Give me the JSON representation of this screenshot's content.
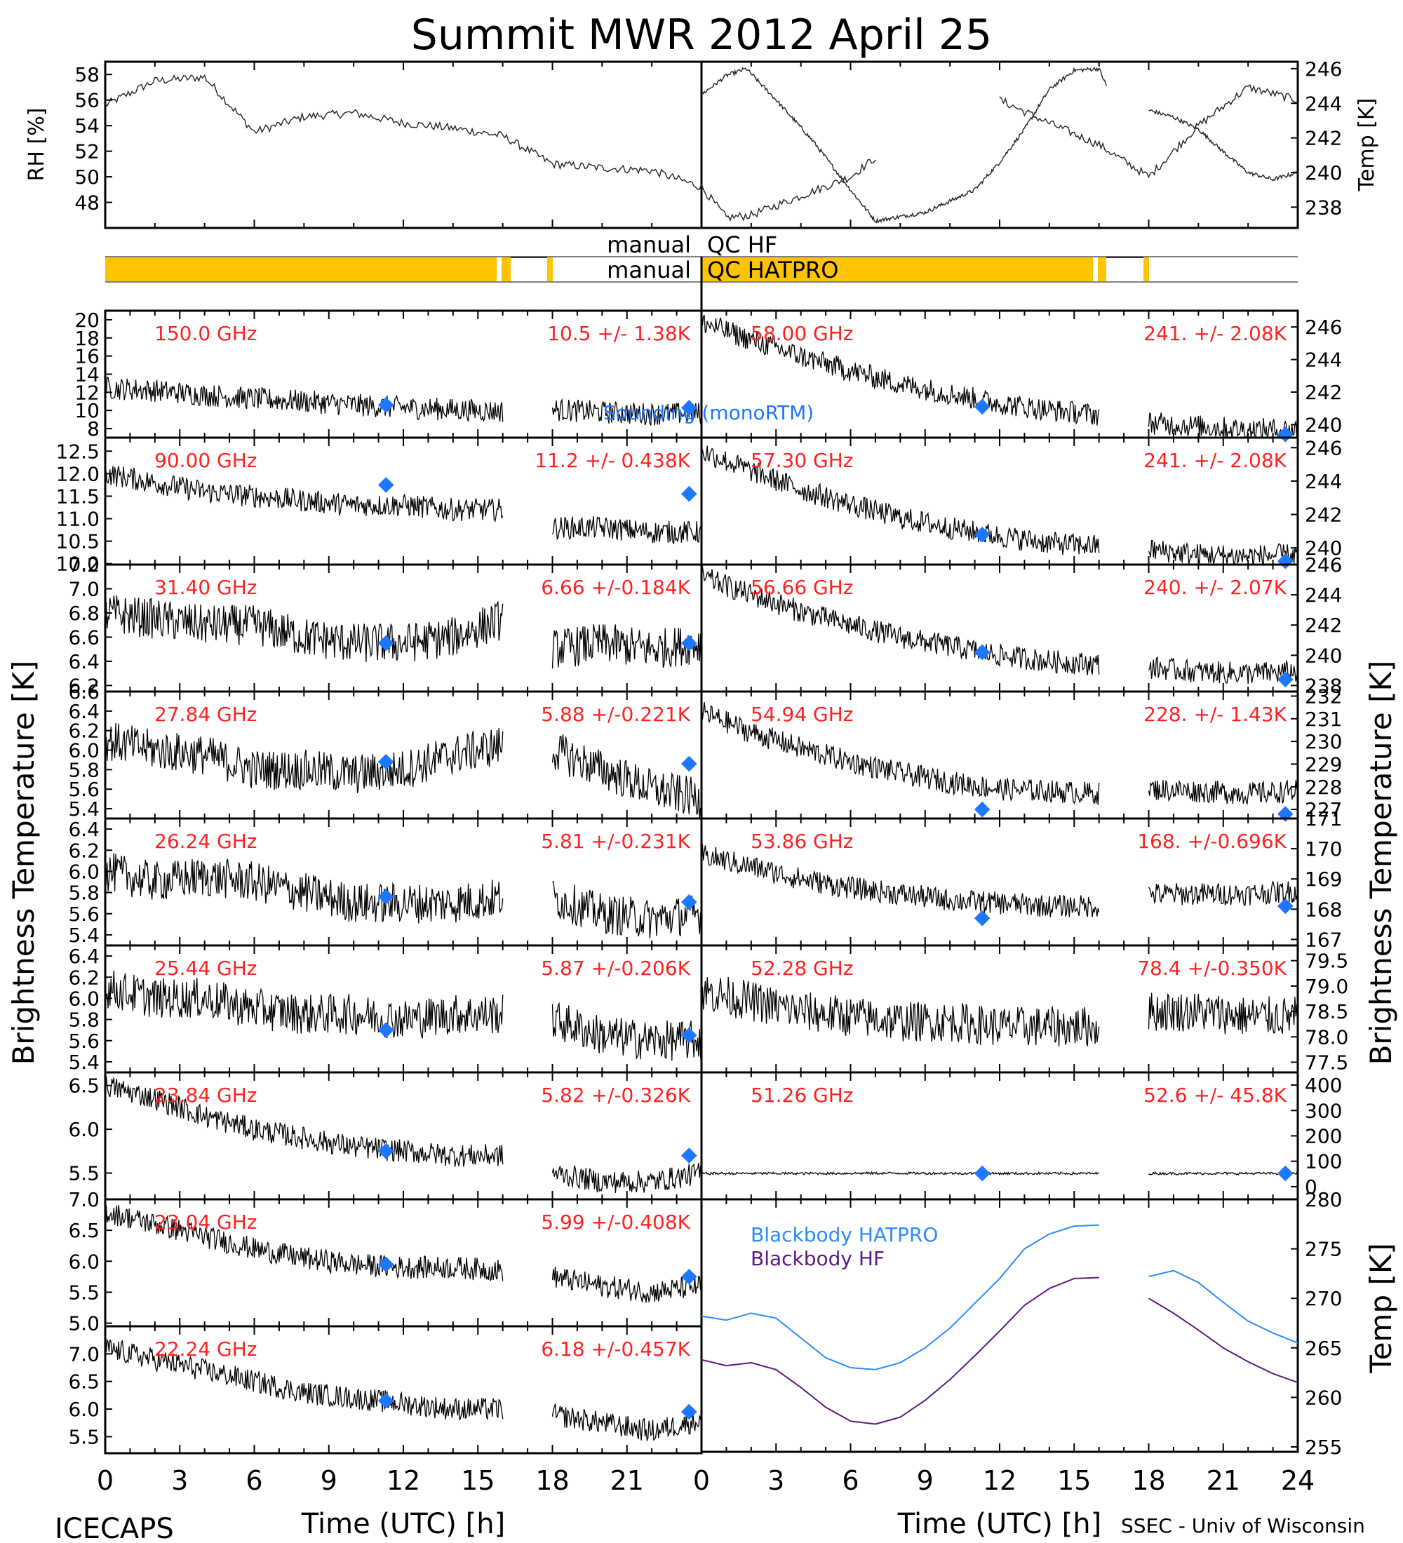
{
  "figure": {
    "title": "Summit MWR 2012 April 25",
    "footer_left": "ICECAPS",
    "footer_right": "SSEC - Univ of Wisconsin",
    "xlabel": "Time (UTC) [h]",
    "ylabel_left": "Brightness Temperature [K]",
    "ylabel_right": "Brightness Temperature [K]",
    "qc_hf_label_left": "manual",
    "qc_hf_label_right": "QC HF",
    "qc_hatpro_label_left": "manual",
    "qc_hatpro_label_right": "QC HATPRO",
    "sounding_label": "Sounding (monoRTM)",
    "colors": {
      "trace": "#000000",
      "stat_text": "#ff2020",
      "sounding": "#1e78ff",
      "qc_bar": "#ffc400",
      "bb_hatpro": "#2a8cff",
      "bb_hf": "#5a1a80"
    }
  },
  "chart_data": [
    {
      "type": "line",
      "id": "met-rh",
      "ylabel": "RH [%]",
      "xlim": [
        0,
        12
      ],
      "ylim": [
        46,
        59
      ],
      "yticks": [
        "48",
        "50",
        "52",
        "54",
        "56",
        "58"
      ],
      "series": [
        {
          "x": [
            0,
            1,
            2,
            3,
            4,
            5,
            6,
            7,
            8,
            9,
            10,
            11,
            12
          ],
          "y": [
            55.6,
            57.5,
            57.8,
            53.5,
            54.7,
            55.0,
            54.2,
            53.8,
            53.2,
            51.0,
            50.7,
            50.5,
            49.2
          ]
        }
      ]
    },
    {
      "type": "line",
      "id": "met-rh-cont",
      "ylabel": "",
      "xlim": [
        12,
        24
      ],
      "ylim": [
        46,
        59
      ],
      "series": [
        {
          "x": [
            12,
            12.5,
            13,
            14,
            15,
            15.5,
            18,
            19,
            20,
            21,
            22,
            23,
            24
          ],
          "y": [
            48.0,
            46.8,
            47.0,
            48.5,
            50.0,
            51.5,
            56.0,
            54.2,
            52.5,
            50.0,
            54.0,
            57.0,
            56.0
          ]
        }
      ]
    },
    {
      "type": "line",
      "id": "met-temp",
      "ylabel": "Temp [K]",
      "xlim": [
        0,
        24
      ],
      "ylim": [
        236.8,
        246.4
      ],
      "yticks": [
        "238",
        "240",
        "242",
        "244",
        "246"
      ],
      "series": [
        {
          "x": [
            0,
            1,
            1.8,
            3,
            4.5,
            6,
            7,
            9,
            11,
            12,
            13,
            14,
            15,
            16,
            16.3,
            18,
            19,
            20,
            21,
            22,
            23,
            24
          ],
          "y": [
            244.5,
            245.6,
            246.0,
            244.2,
            241.8,
            239.0,
            237.2,
            237.7,
            239.0,
            240.6,
            242.5,
            244.8,
            245.9,
            246.0,
            245.0,
            243.6,
            243.2,
            242.5,
            241.2,
            240.0,
            239.6,
            240.0
          ]
        }
      ]
    },
    {
      "type": "line",
      "id": "tb-150",
      "label": "150.0 GHz",
      "stat": "10.5 +/- 1.38K",
      "ylim": [
        7,
        21
      ],
      "yticks": [
        "8",
        "10",
        "12",
        "14",
        "16",
        "18",
        "20"
      ],
      "x": [
        0,
        2,
        4,
        6,
        8,
        10,
        12,
        14,
        16
      ],
      "y": [
        12.5,
        12.2,
        11.7,
        11.3,
        11.0,
        10.6,
        10.3,
        10.1,
        9.9
      ],
      "x2": [
        18,
        20,
        22,
        24
      ],
      "y2": [
        10.1,
        9.8,
        9.6,
        9.7
      ],
      "sounding": [
        [
          11.3,
          10.6
        ],
        [
          23.5,
          10.3
        ]
      ]
    },
    {
      "type": "line",
      "id": "tb-90",
      "label": "90.00 GHz",
      "stat": "11.2 +/- 0.438K",
      "ylim": [
        9.98,
        12.8
      ],
      "yticks": [
        "10.0",
        "10.5",
        "11.0",
        "11.5",
        "12.0",
        "12.5"
      ],
      "x": [
        0,
        2,
        4,
        6,
        8,
        10,
        12,
        14,
        16
      ],
      "y": [
        12.0,
        11.8,
        11.6,
        11.5,
        11.4,
        11.3,
        11.3,
        11.2,
        11.2
      ],
      "x2": [
        18,
        20,
        22,
        24
      ],
      "y2": [
        10.8,
        10.8,
        10.7,
        10.7
      ],
      "sounding": [
        [
          11.3,
          11.75
        ],
        [
          23.5,
          11.55
        ]
      ]
    },
    {
      "type": "line",
      "id": "tb-31",
      "label": "31.40 GHz",
      "stat": "6.66 +/-0.184K",
      "ylim": [
        6.15,
        7.2
      ],
      "yticks": [
        "6.2",
        "6.4",
        "6.6",
        "6.8",
        "7.0",
        "7.2"
      ],
      "x": [
        0,
        2,
        4,
        6,
        8,
        10,
        12,
        14,
        16
      ],
      "y": [
        6.8,
        6.75,
        6.7,
        6.7,
        6.6,
        6.55,
        6.55,
        6.6,
        6.75
      ],
      "x2": [
        18,
        20,
        22,
        24
      ],
      "y2": [
        6.5,
        6.55,
        6.5,
        6.55
      ],
      "sounding": [
        [
          11.3,
          6.55
        ],
        [
          23.5,
          6.55
        ]
      ]
    },
    {
      "type": "line",
      "id": "tb-27",
      "label": "27.84 GHz",
      "stat": "5.88 +/-0.221K",
      "ylim": [
        5.3,
        6.6
      ],
      "yticks": [
        "5.4",
        "5.6",
        "5.8",
        "6.0",
        "6.2",
        "6.4",
        "6.6"
      ],
      "x": [
        0,
        2,
        4,
        6,
        8,
        10,
        12,
        14,
        16
      ],
      "y": [
        6.1,
        6.0,
        5.95,
        5.8,
        5.8,
        5.75,
        5.8,
        5.95,
        6.05
      ],
      "x2": [
        18,
        20,
        22,
        24
      ],
      "y2": [
        6.0,
        5.8,
        5.6,
        5.5
      ],
      "sounding": [
        [
          11.3,
          5.88
        ],
        [
          23.5,
          5.86
        ]
      ]
    },
    {
      "type": "line",
      "id": "tb-26",
      "label": "26.24 GHz",
      "stat": "5.81 +/-0.231K",
      "ylim": [
        5.3,
        6.5
      ],
      "yticks": [
        "5.4",
        "5.6",
        "5.8",
        "6.0",
        "6.2",
        "6.4"
      ],
      "x": [
        0,
        2,
        4,
        6,
        8,
        10,
        12,
        14,
        16
      ],
      "y": [
        6.0,
        5.9,
        5.95,
        5.9,
        5.8,
        5.7,
        5.7,
        5.7,
        5.75
      ],
      "x2": [
        18,
        20,
        22,
        24
      ],
      "y2": [
        5.75,
        5.6,
        5.55,
        5.6
      ],
      "sounding": [
        [
          11.3,
          5.76
        ],
        [
          23.5,
          5.71
        ]
      ]
    },
    {
      "type": "line",
      "id": "tb-25",
      "label": "25.44 GHz",
      "stat": "5.87 +/-0.206K",
      "ylim": [
        5.3,
        6.5
      ],
      "yticks": [
        "5.4",
        "5.6",
        "5.8",
        "6.0",
        "6.2",
        "6.4"
      ],
      "x": [
        0,
        2,
        4,
        6,
        8,
        10,
        12,
        14,
        16
      ],
      "y": [
        6.1,
        6.0,
        6.0,
        5.9,
        5.85,
        5.85,
        5.8,
        5.85,
        5.85
      ],
      "x2": [
        18,
        20,
        22,
        24
      ],
      "y2": [
        5.8,
        5.65,
        5.6,
        5.6
      ],
      "sounding": [
        [
          11.3,
          5.7
        ],
        [
          23.5,
          5.65
        ]
      ]
    },
    {
      "type": "line",
      "id": "tb-23-84",
      "label": "23.84 GHz",
      "stat": "5.82 +/-0.326K",
      "ylim": [
        5.2,
        6.65
      ],
      "yticks": [
        "5.5",
        "6.0",
        "6.5"
      ],
      "x": [
        0,
        2,
        4,
        6,
        8,
        10,
        12,
        14,
        16
      ],
      "y": [
        6.5,
        6.35,
        6.15,
        6.0,
        5.9,
        5.8,
        5.75,
        5.7,
        5.7
      ],
      "x2": [
        18,
        20,
        22,
        24
      ],
      "y2": [
        5.5,
        5.4,
        5.4,
        5.5
      ],
      "sounding": [
        [
          11.3,
          5.75
        ],
        [
          23.5,
          5.7
        ]
      ]
    },
    {
      "type": "line",
      "id": "tb-23-04",
      "label": "23.04 GHz",
      "stat": "5.99 +/-0.408K",
      "ylim": [
        4.95,
        7.0
      ],
      "yticks": [
        "5.0",
        "5.5",
        "6.0",
        "6.5",
        "7.0"
      ],
      "x": [
        0,
        2,
        4,
        6,
        8,
        10,
        12,
        14,
        16
      ],
      "y": [
        6.8,
        6.6,
        6.4,
        6.2,
        6.05,
        5.95,
        5.9,
        5.9,
        5.85
      ],
      "x2": [
        18,
        20,
        22,
        24
      ],
      "y2": [
        5.75,
        5.6,
        5.5,
        5.6
      ],
      "sounding": [
        [
          11.3,
          5.95
        ],
        [
          23.5,
          5.75
        ]
      ]
    },
    {
      "type": "line",
      "id": "tb-22",
      "label": "22.24 GHz",
      "stat": "6.18 +/-0.457K",
      "ylim": [
        5.2,
        7.5
      ],
      "yticks": [
        "5.5",
        "6.0",
        "6.5",
        "7.0"
      ],
      "x": [
        0,
        2,
        4,
        6,
        8,
        10,
        12,
        14,
        16
      ],
      "y": [
        7.1,
        6.9,
        6.7,
        6.5,
        6.3,
        6.2,
        6.1,
        6.0,
        6.0
      ],
      "x2": [
        18,
        20,
        22,
        24
      ],
      "y2": [
        5.9,
        5.75,
        5.6,
        5.8
      ],
      "sounding": [
        [
          11.3,
          6.15
        ],
        [
          23.5,
          5.95
        ]
      ]
    },
    {
      "type": "line",
      "id": "tb-58",
      "label": "58.00 GHz",
      "stat": "241. +/- 2.08K",
      "ylim": [
        239.2,
        247.0
      ],
      "yticks": [
        "240",
        "242",
        "244",
        "246"
      ],
      "x": [
        0,
        2,
        4,
        6,
        8,
        10,
        12,
        14,
        16
      ],
      "y": [
        246.3,
        245.2,
        244.2,
        243.3,
        242.5,
        241.9,
        241.3,
        240.9,
        240.6
      ],
      "x2": [
        18,
        20,
        22,
        24
      ],
      "y2": [
        240.1,
        239.9,
        239.7,
        239.7
      ],
      "sounding": [
        [
          11.3,
          241.1
        ],
        [
          23.5,
          239.4
        ]
      ]
    },
    {
      "type": "line",
      "id": "tb-57",
      "label": "57.30 GHz",
      "stat": "241. +/- 2.08K",
      "ylim": [
        239.0,
        246.6
      ],
      "yticks": [
        "240",
        "242",
        "244",
        "246"
      ],
      "x": [
        0,
        2,
        4,
        6,
        8,
        10,
        12,
        14,
        16
      ],
      "y": [
        245.8,
        244.6,
        243.5,
        242.6,
        241.8,
        241.2,
        240.7,
        240.3,
        240.1
      ],
      "x2": [
        18,
        20,
        22,
        24
      ],
      "y2": [
        239.9,
        239.6,
        239.5,
        239.6
      ],
      "sounding": [
        [
          11.3,
          240.8
        ],
        [
          23.5,
          239.2
        ]
      ]
    },
    {
      "type": "line",
      "id": "tb-56",
      "label": "56.66 GHz",
      "stat": "240. +/- 2.07K",
      "ylim": [
        237.6,
        246.0
      ],
      "yticks": [
        "238",
        "240",
        "242",
        "244",
        "246"
      ],
      "x": [
        0,
        2,
        4,
        6,
        8,
        10,
        12,
        14,
        16
      ],
      "y": [
        245.2,
        244.0,
        242.9,
        242.0,
        241.2,
        240.6,
        240.0,
        239.6,
        239.4
      ],
      "x2": [
        18,
        20,
        22,
        24
      ],
      "y2": [
        239.2,
        238.9,
        238.8,
        238.9
      ],
      "sounding": [
        [
          11.3,
          240.2
        ],
        [
          23.5,
          238.4
        ]
      ]
    },
    {
      "type": "line",
      "id": "tb-54",
      "label": "54.94 GHz",
      "stat": "228. +/- 1.43K",
      "ylim": [
        226.6,
        232.2
      ],
      "yticks": [
        "227",
        "228",
        "229",
        "230",
        "231",
        "232"
      ],
      "x": [
        0,
        2,
        4,
        6,
        8,
        10,
        12,
        14,
        16
      ],
      "y": [
        231.3,
        230.4,
        229.7,
        229.1,
        228.6,
        228.2,
        227.9,
        227.8,
        227.7
      ],
      "x2": [
        18,
        20,
        22,
        24
      ],
      "y2": [
        227.9,
        227.8,
        227.7,
        227.8
      ],
      "sounding": [
        [
          11.3,
          227.0
        ],
        [
          23.5,
          226.8
        ]
      ]
    },
    {
      "type": "line",
      "id": "tb-53",
      "label": "53.86 GHz",
      "stat": "168. +/-0.696K",
      "ylim": [
        166.8,
        171.0
      ],
      "yticks": [
        "167",
        "168",
        "169",
        "170",
        "171"
      ],
      "x": [
        0,
        2,
        4,
        6,
        8,
        10,
        12,
        14,
        16
      ],
      "y": [
        169.8,
        169.4,
        169.0,
        168.7,
        168.5,
        168.3,
        168.2,
        168.1,
        168.1
      ],
      "x2": [
        18,
        20,
        22,
        24
      ],
      "y2": [
        168.5,
        168.5,
        168.5,
        168.6
      ],
      "sounding": [
        [
          11.3,
          167.7
        ],
        [
          23.5,
          168.1
        ]
      ]
    },
    {
      "type": "line",
      "id": "tb-52",
      "label": "52.28 GHz",
      "stat": "78.4 +/-0.350K",
      "ylim": [
        77.3,
        79.8
      ],
      "yticks": [
        "77.5",
        "78.0",
        "78.5",
        "79.0",
        "79.5"
      ],
      "x": [
        0,
        2,
        4,
        6,
        8,
        10,
        12,
        14,
        16
      ],
      "y": [
        78.9,
        78.7,
        78.5,
        78.4,
        78.3,
        78.3,
        78.2,
        78.2,
        78.2
      ],
      "x2": [
        18,
        20,
        22,
        24
      ],
      "y2": [
        78.5,
        78.5,
        78.4,
        78.4
      ],
      "sounding": []
    },
    {
      "type": "line",
      "id": "tb-51",
      "label": "51.26 GHz",
      "stat": "52.6 +/- 45.8K",
      "ylim": [
        -50,
        450
      ],
      "yticks": [
        "0",
        "100",
        "200",
        "300",
        "400"
      ],
      "x": [
        0,
        4,
        8,
        12,
        16
      ],
      "y": [
        52,
        52,
        53,
        52,
        52
      ],
      "x2": [
        18,
        20,
        22,
        24
      ],
      "y2": [
        52,
        52,
        52,
        52
      ],
      "sounding": [
        [
          11.3,
          52
        ],
        [
          23.5,
          52
        ]
      ]
    },
    {
      "type": "line",
      "id": "blackbody",
      "ylabel": "Temp [K]",
      "ylim": [
        254.5,
        280.0
      ],
      "yticks": [
        "255",
        "260",
        "265",
        "270",
        "275",
        "280"
      ],
      "series": [
        {
          "name": "Blackbody HATPRO",
          "x": [
            0,
            1,
            2,
            3,
            4,
            5,
            6,
            7,
            8,
            9,
            10,
            11,
            12,
            13,
            14,
            15,
            16,
            18,
            19,
            20,
            21,
            22,
            23,
            24
          ],
          "y": [
            268.2,
            267.8,
            268.5,
            268.0,
            266.0,
            264.0,
            263.0,
            262.8,
            263.5,
            265.0,
            267.0,
            269.5,
            272.0,
            275.0,
            276.5,
            277.3,
            277.4,
            272.2,
            272.8,
            271.6,
            269.6,
            267.7,
            266.5,
            265.5
          ]
        },
        {
          "name": "Blackbody HF",
          "x": [
            0,
            1,
            2,
            3,
            4,
            5,
            6,
            7,
            8,
            9,
            10,
            11,
            12,
            13,
            14,
            15,
            16,
            18,
            19,
            20,
            21,
            22,
            23,
            24
          ],
          "y": [
            263.8,
            263.2,
            263.5,
            262.8,
            261.0,
            259.0,
            257.6,
            257.3,
            258.0,
            259.7,
            261.8,
            264.2,
            266.7,
            269.3,
            271.0,
            272.0,
            272.1,
            270.0,
            268.5,
            266.8,
            265.0,
            263.6,
            262.4,
            261.5
          ]
        }
      ]
    }
  ]
}
